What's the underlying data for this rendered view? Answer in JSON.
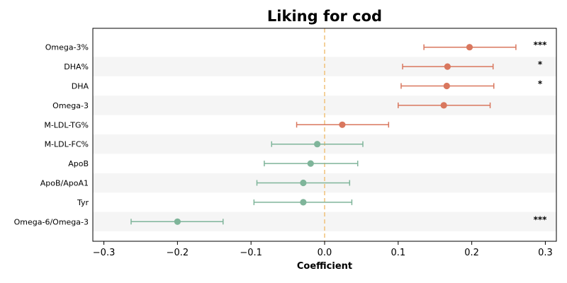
{
  "chart_data": {
    "type": "scatter",
    "title": "Liking for cod",
    "xlabel": "Coefficient",
    "ylabel": "",
    "xlim": [
      -0.315,
      0.315
    ],
    "xticks": [
      -0.3,
      -0.2,
      -0.1,
      0.0,
      0.1,
      0.2,
      0.3
    ],
    "xtick_labels": [
      "−0.3",
      "−0.2",
      "−0.1",
      "0.0",
      "0.1",
      "0.2",
      "0.3"
    ],
    "reference_line": 0.0,
    "colors": {
      "positive": "#d9775e",
      "negative": "#7fb59a",
      "reference": "#f0c27a",
      "band": "#f5f5f5"
    },
    "rows": [
      {
        "label": "Omega-3%",
        "estimate": 0.197,
        "ci_low": 0.135,
        "ci_high": 0.26,
        "sig": "***"
      },
      {
        "label": "DHA%",
        "estimate": 0.167,
        "ci_low": 0.106,
        "ci_high": 0.229,
        "sig": "*"
      },
      {
        "label": "DHA",
        "estimate": 0.166,
        "ci_low": 0.104,
        "ci_high": 0.23,
        "sig": "*"
      },
      {
        "label": "Omega-3",
        "estimate": 0.162,
        "ci_low": 0.1,
        "ci_high": 0.225,
        "sig": ""
      },
      {
        "label": "M-LDL-TG%",
        "estimate": 0.024,
        "ci_low": -0.038,
        "ci_high": 0.087,
        "sig": ""
      },
      {
        "label": "M-LDL-FC%",
        "estimate": -0.01,
        "ci_low": -0.072,
        "ci_high": 0.052,
        "sig": ""
      },
      {
        "label": "ApoB",
        "estimate": -0.019,
        "ci_low": -0.082,
        "ci_high": 0.045,
        "sig": ""
      },
      {
        "label": "ApoB/ApoA1",
        "estimate": -0.029,
        "ci_low": -0.092,
        "ci_high": 0.034,
        "sig": ""
      },
      {
        "label": "Tyr",
        "estimate": -0.029,
        "ci_low": -0.096,
        "ci_high": 0.037,
        "sig": ""
      },
      {
        "label": "Omega-6/Omega-3",
        "estimate": -0.2,
        "ci_low": -0.263,
        "ci_high": -0.138,
        "sig": "***"
      }
    ]
  }
}
